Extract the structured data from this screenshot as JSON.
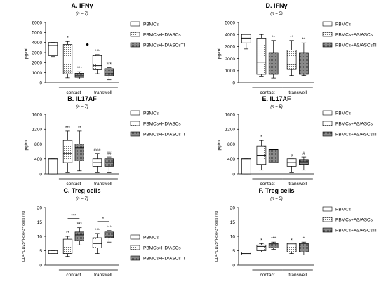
{
  "chart_data": [
    {
      "type": "box",
      "title": "A. IFNγ",
      "subtitle": "(n = 7)",
      "ylabel": "pg/mL",
      "ylim": [
        0,
        6000
      ],
      "yticks": [
        "0",
        "1000",
        "2000",
        "3000",
        "4000",
        "5000",
        "6000"
      ],
      "groups": [
        "contact",
        "transwell"
      ],
      "legend": [
        "PBMCs",
        "PBMCs+HD/ASCs",
        "PBMCs+HD/ASCsTI"
      ],
      "boxes": [
        {
          "series": "PBMCs",
          "min": 2600,
          "q1": 2700,
          "median": 3700,
          "q3": 4000,
          "max": 4000,
          "sig": ""
        },
        {
          "series": "PBMCs+HD/ASCs",
          "min": 500,
          "q1": 900,
          "median": 1100,
          "q3": 3800,
          "max": 4100,
          "sig": "*"
        },
        {
          "series": "PBMCs+HD/ASCsTI",
          "min": 400,
          "q1": 550,
          "median": 700,
          "q3": 950,
          "max": 1100,
          "sig": "***",
          "outlier": 3800
        },
        {
          "series": "PBMCs+HD/ASCs",
          "min": 900,
          "q1": 1300,
          "median": 1700,
          "q3": 2700,
          "max": 2800,
          "sig": "***"
        },
        {
          "series": "PBMCs+HD/ASCsTI",
          "min": 300,
          "q1": 700,
          "median": 900,
          "q3": 1400,
          "max": 1500,
          "sig": "***"
        }
      ]
    },
    {
      "type": "box",
      "title": "D. IFNγ",
      "subtitle": "(n = 5)",
      "ylabel": "pg/mL",
      "ylim": [
        0,
        5000
      ],
      "yticks": [
        "0",
        "1000",
        "2000",
        "3000",
        "4000",
        "5000"
      ],
      "groups": [
        "contact",
        "transwell"
      ],
      "legend": [
        "PBMCs",
        "PBMCs+AS/ASCs",
        "PBMCs+AS/ASCsTI"
      ],
      "boxes": [
        {
          "series": "PBMCs",
          "min": 2800,
          "q1": 3300,
          "median": 3700,
          "q3": 4000,
          "max": 4000,
          "sig": ""
        },
        {
          "series": "PBMCs+AS/ASCs",
          "min": 500,
          "q1": 700,
          "median": 1700,
          "q3": 3700,
          "max": 4000,
          "sig": ""
        },
        {
          "series": "PBMCs+AS/ASCsTI",
          "min": 400,
          "q1": 700,
          "median": 900,
          "q3": 2500,
          "max": 3500,
          "sig": "**"
        },
        {
          "series": "PBMCs+AS/ASCs",
          "min": 600,
          "q1": 1100,
          "median": 1500,
          "q3": 2700,
          "max": 3500,
          "sig": "**"
        },
        {
          "series": "PBMCs+AS/ASCsTI",
          "min": 600,
          "q1": 700,
          "median": 900,
          "q3": 2500,
          "max": 3300,
          "sig": "**"
        }
      ]
    },
    {
      "type": "box",
      "title": "B. IL17AF",
      "subtitle": "(n = 7)",
      "ylabel": "pg/mL",
      "ylim": [
        0,
        1600
      ],
      "yticks": [
        "0",
        "400",
        "800",
        "1200",
        "1600"
      ],
      "groups": [
        "contact",
        "transwell"
      ],
      "legend": [
        "PBMCs",
        "PBMCs+HD/ASCs",
        "PBMCs+HD/ASCsTI"
      ],
      "boxes": [
        {
          "series": "PBMCs",
          "min": 0,
          "q1": 0,
          "median": 400,
          "q3": 400,
          "max": 400,
          "sig": ""
        },
        {
          "series": "PBMCs+HD/ASCs",
          "min": 50,
          "q1": 300,
          "median": 550,
          "q3": 900,
          "max": 1150,
          "sig": "***"
        },
        {
          "series": "PBMCs+HD/ASCsTI",
          "min": 80,
          "q1": 350,
          "median": 700,
          "q3": 800,
          "max": 1150,
          "sig": "**"
        },
        {
          "series": "PBMCs+HD/ASCs",
          "min": 50,
          "q1": 200,
          "median": 300,
          "q3": 400,
          "max": 550,
          "sig": "###"
        },
        {
          "series": "PBMCs+HD/ASCsTI",
          "min": 50,
          "q1": 200,
          "median": 300,
          "q3": 400,
          "max": 450,
          "sig": "##"
        }
      ]
    },
    {
      "type": "box",
      "title": "E. IL17AF",
      "subtitle": "(n = 5)",
      "ylabel": "pg/mL",
      "ylim": [
        0,
        1600
      ],
      "yticks": [
        "0",
        "400",
        "800",
        "1200",
        "1600"
      ],
      "groups": [
        "contact",
        "transwell"
      ],
      "legend": [
        "PBMCs",
        "PBMCs+AS/ASCs",
        "PBMCs+AS/ASCsTI"
      ],
      "boxes": [
        {
          "series": "PBMCs",
          "min": 0,
          "q1": 0,
          "median": 400,
          "q3": 400,
          "max": 400,
          "sig": ""
        },
        {
          "series": "PBMCs+AS/ASCs",
          "min": 100,
          "q1": 250,
          "median": 500,
          "q3": 750,
          "max": 900,
          "sig": "*"
        },
        {
          "series": "PBMCs+AS/ASCsTI",
          "min": 300,
          "q1": 300,
          "median": 650,
          "q3": 650,
          "max": 650,
          "sig": ""
        },
        {
          "series": "PBMCs+AS/ASCs",
          "min": 50,
          "q1": 200,
          "median": 300,
          "q3": 400,
          "max": 400,
          "sig": "#"
        },
        {
          "series": "PBMCs+AS/ASCsTI",
          "min": 100,
          "q1": 250,
          "median": 320,
          "q3": 380,
          "max": 450,
          "sig": "#"
        }
      ]
    },
    {
      "type": "box",
      "title": "C. Treg cells",
      "subtitle": "(n = 7)",
      "ylabel": "CD4⁺CD25ᴴⁱFoxP3⁺ cells (%)",
      "ylim": [
        0,
        20
      ],
      "yticks": [
        "0",
        "5",
        "10",
        "15",
        "20"
      ],
      "groups": [
        "contact",
        "transwell"
      ],
      "legend": [
        "PBMCs",
        "PBMCs+HD/ASCs",
        "PBMCs+HD/ASCsTI"
      ],
      "brackets": [
        {
          "from": 1,
          "to": 2,
          "label": "***"
        },
        {
          "from": 3,
          "to": 4,
          "label": "*"
        }
      ],
      "boxes": [
        {
          "series": "PBMCs",
          "min": 4,
          "q1": 4,
          "median": 4.5,
          "q3": 5,
          "max": 5,
          "sig": ""
        },
        {
          "series": "PBMCs+HD/ASCs",
          "min": 3,
          "q1": 4,
          "median": 6,
          "q3": 9,
          "max": 10,
          "sig": "**"
        },
        {
          "series": "PBMCs+HD/ASCsTI",
          "min": 7,
          "q1": 8.5,
          "median": 10.5,
          "q3": 11.5,
          "max": 13,
          "sig": "***"
        },
        {
          "series": "PBMCs+HD/ASCs",
          "min": 4,
          "q1": 6,
          "median": 7.5,
          "q3": 9.5,
          "max": 11,
          "sig": "***"
        },
        {
          "series": "PBMCs+HD/ASCsTI",
          "min": 8,
          "q1": 9.5,
          "median": 10,
          "q3": 11.5,
          "max": 12,
          "sig": "***"
        }
      ]
    },
    {
      "type": "box",
      "title": "F. Treg cells",
      "subtitle": "(n = 5)",
      "ylabel": "CD4⁺CD25ᴴⁱFoxP3⁺ cells (%)",
      "ylim": [
        0,
        20
      ],
      "yticks": [
        "0",
        "5",
        "10",
        "15",
        "20"
      ],
      "groups": [
        "contact",
        "transwell"
      ],
      "legend": [
        "PBMCs",
        "PBMCs+AS/ASCs",
        "PBMCs+AS/ASCsTI"
      ],
      "boxes": [
        {
          "series": "PBMCs",
          "min": 3.5,
          "q1": 3.5,
          "median": 4,
          "q3": 4.5,
          "max": 4.5,
          "sig": ""
        },
        {
          "series": "PBMCs+AS/ASCs",
          "min": 4.5,
          "q1": 5,
          "median": 6.5,
          "q3": 7,
          "max": 7.5,
          "sig": "*"
        },
        {
          "series": "PBMCs+AS/ASCsTI",
          "min": 5.5,
          "q1": 6,
          "median": 7,
          "q3": 7.5,
          "max": 8,
          "sig": "***"
        },
        {
          "series": "PBMCs+AS/ASCs",
          "min": 4,
          "q1": 4.5,
          "median": 7,
          "q3": 7.5,
          "max": 7.5,
          "sig": "*"
        },
        {
          "series": "PBMCs+AS/ASCsTI",
          "min": 3.5,
          "q1": 4.5,
          "median": 6,
          "q3": 7.5,
          "max": 8,
          "sig": "*"
        }
      ]
    }
  ]
}
